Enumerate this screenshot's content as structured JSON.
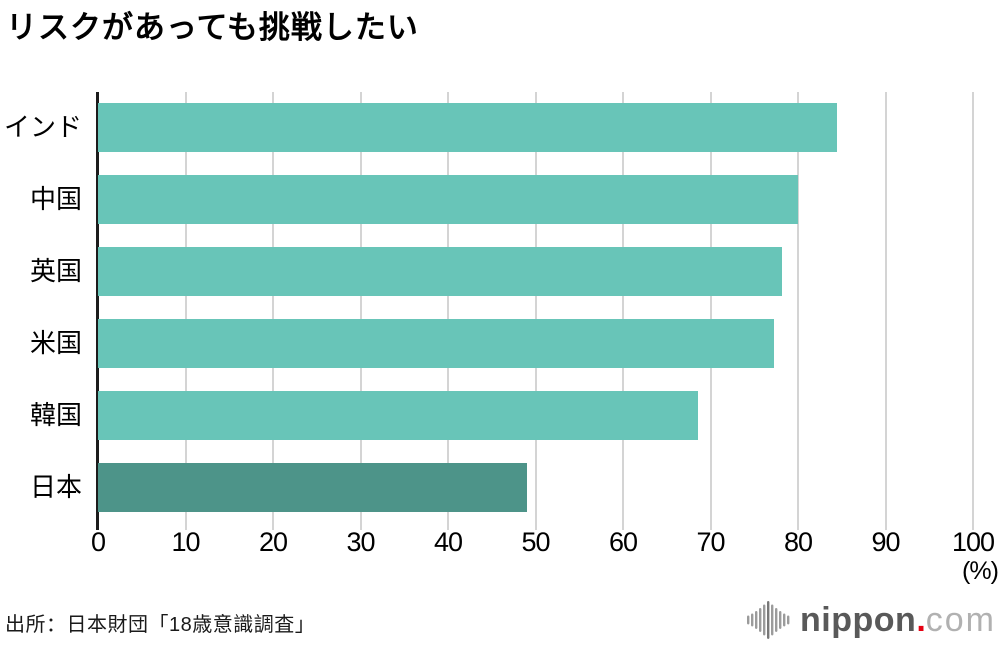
{
  "title": "リスクがあっても挑戦したい",
  "chart_data": {
    "type": "bar",
    "orientation": "horizontal",
    "title": "リスクがあっても挑戦したい",
    "categories": [
      "インド",
      "中国",
      "英国",
      "米国",
      "韓国",
      "日本"
    ],
    "values": [
      84.5,
      80.0,
      78.2,
      77.2,
      68.6,
      49.0
    ],
    "xlabel": "(%)",
    "xlim": [
      0,
      100
    ],
    "x_ticks": [
      0,
      10,
      20,
      30,
      40,
      50,
      60,
      70,
      80,
      90,
      100
    ],
    "grid": true,
    "legend": "none",
    "bar_color": "#68c5b8",
    "highlight_bar_color": "#4d9489",
    "highlight_category": "日本",
    "gridline_color": "#d4d4d4",
    "axis_color": "#1c1c1c"
  },
  "footer": {
    "source": "出所：日本財団「18歳意識調査」",
    "logo": {
      "icon": "soundwave-bars-icon",
      "name": "nippon",
      "dot": ".",
      "tld": "com",
      "name_color": "#595959",
      "dot_color": "#e60012",
      "tld_color": "#b1b1b1",
      "icon_bar_heights": [
        9,
        13,
        18,
        24,
        31,
        38,
        31,
        24,
        18,
        13,
        9
      ],
      "icon_color": "#9b9b9b",
      "icon_center_color": "#787878"
    }
  }
}
